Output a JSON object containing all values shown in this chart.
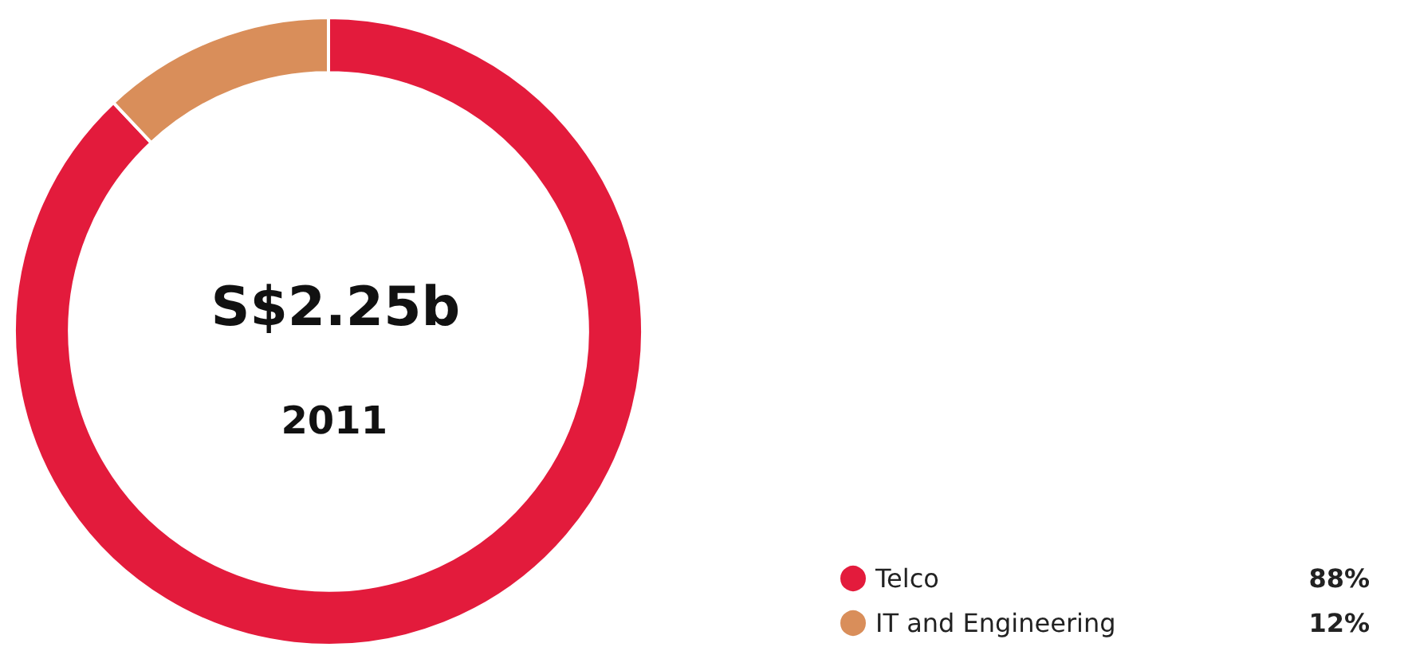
{
  "chart_data": {
    "type": "donut",
    "categories": [
      "Telco",
      "IT and Engineering"
    ],
    "values": [
      88,
      12
    ],
    "colors": [
      "#e31b3c",
      "#d98e5a"
    ],
    "value_labels": [
      "88%",
      "12%"
    ],
    "annotations": [
      "S$2.25b",
      "2011"
    ],
    "legend": "bottom right"
  }
}
